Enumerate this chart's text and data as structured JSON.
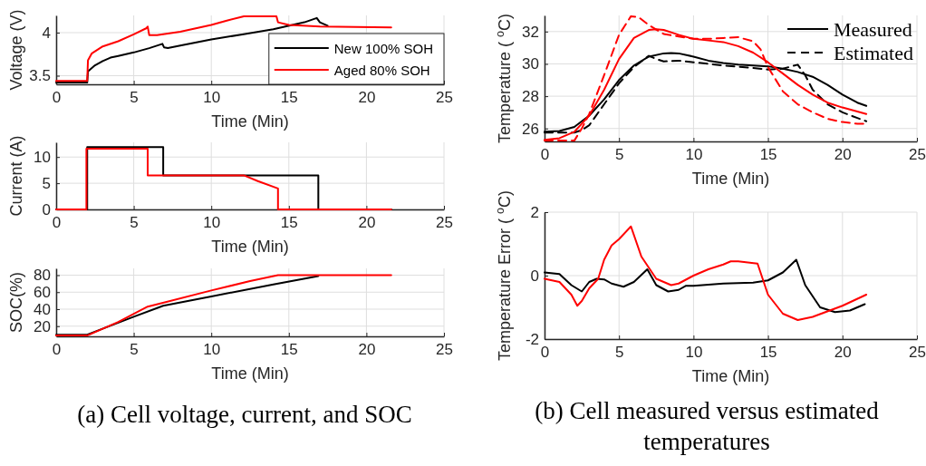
{
  "chart_data": [
    {
      "type": "line",
      "xlabel": "Time (Min)",
      "ylabel": "Voltage (V)",
      "xlim": [
        0,
        25
      ],
      "xticks": [
        0,
        5,
        10,
        15,
        20,
        25
      ],
      "ylim": [
        3.4,
        4.2
      ],
      "yticks": [
        {
          "value": 3.5,
          "label": "3.5"
        },
        4
      ],
      "grid": true,
      "legend": "bottom right",
      "series": [
        {
          "name": "New 100% SOH",
          "color": "#000000",
          "x": [
            0,
            2,
            2.05,
            2.5,
            3,
            3.5,
            4,
            5,
            6,
            6.85,
            6.95,
            7.2,
            8,
            10,
            12,
            14,
            16,
            16.8,
            17,
            17.5
          ],
          "values": [
            3.42,
            3.42,
            3.55,
            3.62,
            3.67,
            3.71,
            3.73,
            3.77,
            3.82,
            3.87,
            3.83,
            3.82,
            3.85,
            3.92,
            3.98,
            4.04,
            4.12,
            4.17,
            4.12,
            4.08
          ]
        },
        {
          "name": "Aged 80% SOH",
          "color": "#ff0000",
          "x": [
            0,
            2,
            2.05,
            2.3,
            3,
            4,
            5,
            5.8,
            5.9,
            6,
            6.5,
            8,
            10,
            11,
            12.1,
            14.2,
            14.3,
            15,
            17,
            21.6
          ],
          "values": [
            3.44,
            3.44,
            3.68,
            3.76,
            3.84,
            3.9,
            3.98,
            4.05,
            4.07,
            3.97,
            3.97,
            4.01,
            4.09,
            4.14,
            4.19,
            4.19,
            4.12,
            4.09,
            4.07,
            4.06
          ]
        }
      ]
    },
    {
      "type": "line",
      "xlabel": "Time (Min)",
      "ylabel": "Current (A)",
      "xlim": [
        0,
        25
      ],
      "xticks": [
        0,
        5,
        10,
        15,
        20,
        25
      ],
      "ylim": [
        0,
        12.8
      ],
      "yticks": [
        0,
        5,
        10
      ],
      "grid": true,
      "series": [
        {
          "color": "#000000",
          "x": [
            0,
            2,
            2,
            6.9,
            6.9,
            16.9,
            16.9,
            21.6
          ],
          "values": [
            0,
            0,
            11.9,
            11.9,
            6.5,
            6.5,
            0,
            0
          ]
        },
        {
          "color": "#ff0000",
          "x": [
            0,
            1.95,
            1.95,
            5.9,
            5.9,
            12.1,
            13,
            14.3,
            14.3,
            21.6
          ],
          "values": [
            0,
            0,
            11.6,
            11.6,
            6.5,
            6.5,
            5.4,
            4,
            0,
            0
          ]
        }
      ]
    },
    {
      "type": "line",
      "xlabel": "Time (Min)",
      "ylabel": "SOC(%)",
      "xlim": [
        0,
        25
      ],
      "xticks": [
        0,
        5,
        10,
        15,
        20,
        25
      ],
      "ylim": [
        8,
        88
      ],
      "yticks": [
        20,
        40,
        60,
        80
      ],
      "grid": true,
      "annotations": [
        "(a) Cell voltage, current, and SOC"
      ],
      "series": [
        {
          "color": "#000000",
          "x": [
            0,
            2,
            5,
            6.9,
            10,
            14,
            16.9
          ],
          "values": [
            10,
            10,
            31,
            44,
            55,
            69,
            79
          ]
        },
        {
          "color": "#ff0000",
          "x": [
            0,
            2,
            4,
            5.9,
            7,
            10,
            12.5,
            14.3,
            21.6
          ],
          "values": [
            9,
            9,
            25,
            43,
            48,
            62,
            73,
            80,
            80
          ]
        }
      ]
    },
    {
      "type": "line",
      "xlabel": "Time (Min)",
      "ylabel": "Temperature ( $^{o}$C)",
      "xlim": [
        0,
        25
      ],
      "xticks": [
        0,
        5,
        10,
        15,
        20,
        25
      ],
      "ylim": [
        25.2,
        33
      ],
      "yticks": [
        26,
        28,
        30,
        32
      ],
      "grid": true,
      "legend": "top right",
      "series": [
        {
          "name": "Measured",
          "color": "#000000",
          "line_style": "solid",
          "x": [
            0,
            1,
            2,
            3,
            4,
            5,
            6,
            7,
            8,
            8.5,
            9,
            10,
            11,
            12,
            13,
            14,
            15,
            16,
            17,
            18,
            19,
            20,
            21,
            21.6
          ],
          "values": [
            25.8,
            25.85,
            26.1,
            26.8,
            27.8,
            29,
            29.9,
            30.45,
            30.65,
            30.67,
            30.65,
            30.45,
            30.2,
            30.05,
            29.95,
            29.9,
            29.85,
            29.7,
            29.5,
            29.2,
            28.7,
            28.1,
            27.6,
            27.4
          ]
        },
        {
          "name": "Estimated",
          "color": "#000000",
          "line_style": "dashed",
          "x": [
            0,
            2,
            2.5,
            3,
            4,
            5,
            6,
            7,
            7.5,
            8,
            9,
            10,
            12,
            14,
            15,
            16,
            17,
            17.5,
            18,
            19,
            20,
            21,
            21.6
          ],
          "values": [
            25.75,
            25.75,
            25.9,
            26.2,
            27.5,
            28.8,
            29.8,
            30.5,
            30.3,
            30.15,
            30.2,
            30.1,
            29.9,
            29.75,
            29.65,
            29.7,
            29.95,
            29.3,
            28.4,
            27.5,
            27,
            26.65,
            26.45
          ]
        },
        {
          "color": "#ff0000",
          "line_style": "solid",
          "x": [
            0,
            1,
            2,
            3,
            4,
            5,
            6,
            7,
            7.5,
            8,
            9,
            10,
            11,
            12,
            13,
            14,
            15,
            16,
            17,
            18,
            19,
            20,
            21,
            21.6
          ],
          "values": [
            25.3,
            25.4,
            25.8,
            26.8,
            28.4,
            30.3,
            31.6,
            32.1,
            32.15,
            32.1,
            31.8,
            31.55,
            31.45,
            31.35,
            31.1,
            30.7,
            30.1,
            29.4,
            28.7,
            28.1,
            27.6,
            27.3,
            27.05,
            26.9
          ]
        },
        {
          "color": "#ff0000",
          "line_style": "dashed",
          "x": [
            0,
            2,
            2.5,
            3,
            4,
            5,
            5.8,
            6.3,
            7,
            8,
            9,
            10,
            11,
            12,
            13,
            14,
            14.5,
            15,
            16,
            17,
            18,
            19,
            20,
            21,
            21.6
          ],
          "values": [
            25.25,
            25.25,
            26,
            26.9,
            29.3,
            31.8,
            32.95,
            32.9,
            32.4,
            31.85,
            31.7,
            31.55,
            31.55,
            31.6,
            31.65,
            31.4,
            30.9,
            29.8,
            28.3,
            27.5,
            27,
            26.6,
            26.4,
            26.3,
            26.3
          ]
        }
      ]
    },
    {
      "type": "line",
      "xlabel": "Time (Min)",
      "ylabel": "Temperature Error ( $^{o}$C)",
      "xlim": [
        0,
        25
      ],
      "xticks": [
        0,
        5,
        10,
        15,
        20,
        25
      ],
      "ylim": [
        -2,
        2
      ],
      "yticks": [
        -2,
        0,
        2
      ],
      "grid": true,
      "annotations": [
        "(b) Cell measured versus estimated temperatures"
      ],
      "series": [
        {
          "color": "#000000",
          "x": [
            0,
            1,
            1.8,
            2.5,
            3,
            3.5,
            4,
            4.5,
            5.3,
            6,
            6.9,
            7.5,
            8.3,
            9,
            9.5,
            10,
            12,
            14,
            15,
            16,
            16.9,
            17.5,
            18.5,
            19.5,
            20.5,
            21.5
          ],
          "values": [
            0.1,
            0.05,
            -0.3,
            -0.5,
            -0.2,
            -0.1,
            -0.12,
            -0.25,
            -0.35,
            -0.2,
            0.2,
            -0.3,
            -0.5,
            -0.45,
            -0.32,
            -0.32,
            -0.25,
            -0.22,
            -0.15,
            0.1,
            0.5,
            -0.3,
            -1,
            -1.15,
            -1.1,
            -0.9
          ]
        },
        {
          "color": "#ff0000",
          "x": [
            0,
            1,
            1.8,
            2.2,
            2.5,
            3,
            3.6,
            4,
            4.5,
            5,
            5.8,
            6.5,
            7.5,
            8.5,
            9,
            10,
            11,
            12,
            12.5,
            13,
            14.3,
            15,
            16,
            17,
            18,
            20,
            21.6
          ],
          "values": [
            -0.1,
            -0.2,
            -0.6,
            -0.95,
            -0.8,
            -0.4,
            -0.1,
            0.5,
            0.95,
            1.15,
            1.55,
            0.6,
            -0.1,
            -0.3,
            -0.25,
            0,
            0.2,
            0.35,
            0.45,
            0.45,
            0.38,
            -0.6,
            -1.2,
            -1.4,
            -1.3,
            -0.95,
            -0.6
          ]
        }
      ]
    }
  ]
}
